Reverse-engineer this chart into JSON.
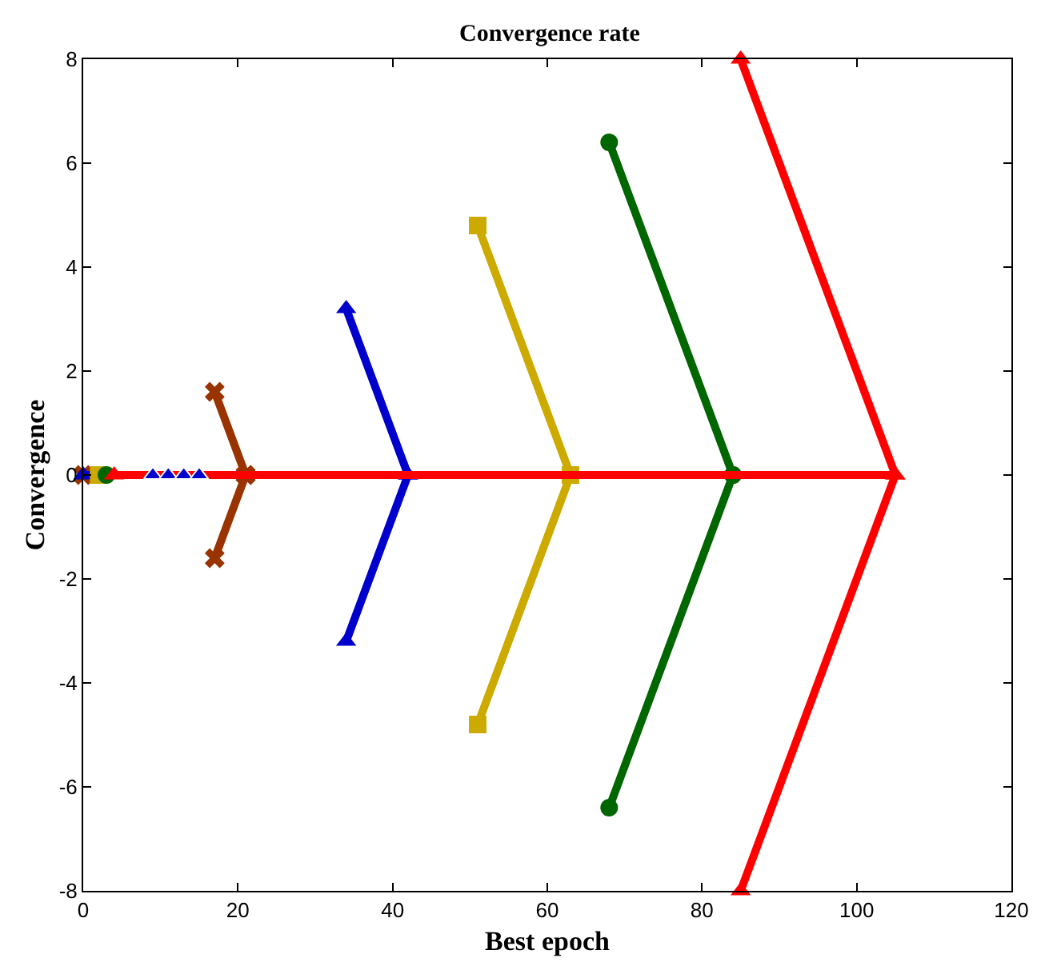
{
  "chart_data": {
    "type": "line",
    "title": "Convergence rate",
    "xlabel": "Best epoch",
    "ylabel": "Convergence",
    "xlim": [
      0,
      120
    ],
    "xticks": [
      0,
      20,
      40,
      60,
      80,
      100,
      120
    ],
    "ylim": [
      -8,
      8
    ],
    "yticks": [
      -8,
      -6,
      -4,
      -2,
      0,
      2,
      4,
      6,
      8
    ],
    "grid": false,
    "line_style": "solid",
    "series": [
      {
        "marker": "cross",
        "color": "#993300",
        "x": [
          0,
          21,
          null,
          17,
          21,
          17
        ],
        "values": [
          0,
          0,
          null,
          1.6,
          0,
          -1.6
        ]
      },
      {
        "marker": "triangle",
        "color": "#0000cc",
        "x": [
          0,
          42,
          null,
          34,
          42,
          34
        ],
        "values": [
          0,
          0,
          null,
          3.2,
          0,
          -3.2
        ]
      },
      {
        "marker": "square",
        "color": "#ccaa00",
        "x": [
          2,
          63,
          null,
          51,
          63,
          51
        ],
        "values": [
          0,
          0,
          null,
          4.8,
          0,
          -4.8
        ]
      },
      {
        "marker": "circle",
        "color": "#006600",
        "x": [
          3,
          84,
          null,
          68,
          84,
          68
        ],
        "values": [
          0,
          0,
          null,
          6.4,
          0,
          -6.4
        ]
      },
      {
        "marker": "triangle",
        "color": "#ff0000",
        "x": [
          4,
          105,
          null,
          85,
          105,
          85
        ],
        "values": [
          0,
          0,
          null,
          8,
          0,
          -8
        ]
      },
      {
        "type": "scatter",
        "marker": "triangle",
        "color": "#0000cc",
        "x": [
          9,
          11,
          13,
          15
        ],
        "values": [
          0,
          0,
          0,
          0
        ]
      }
    ]
  }
}
